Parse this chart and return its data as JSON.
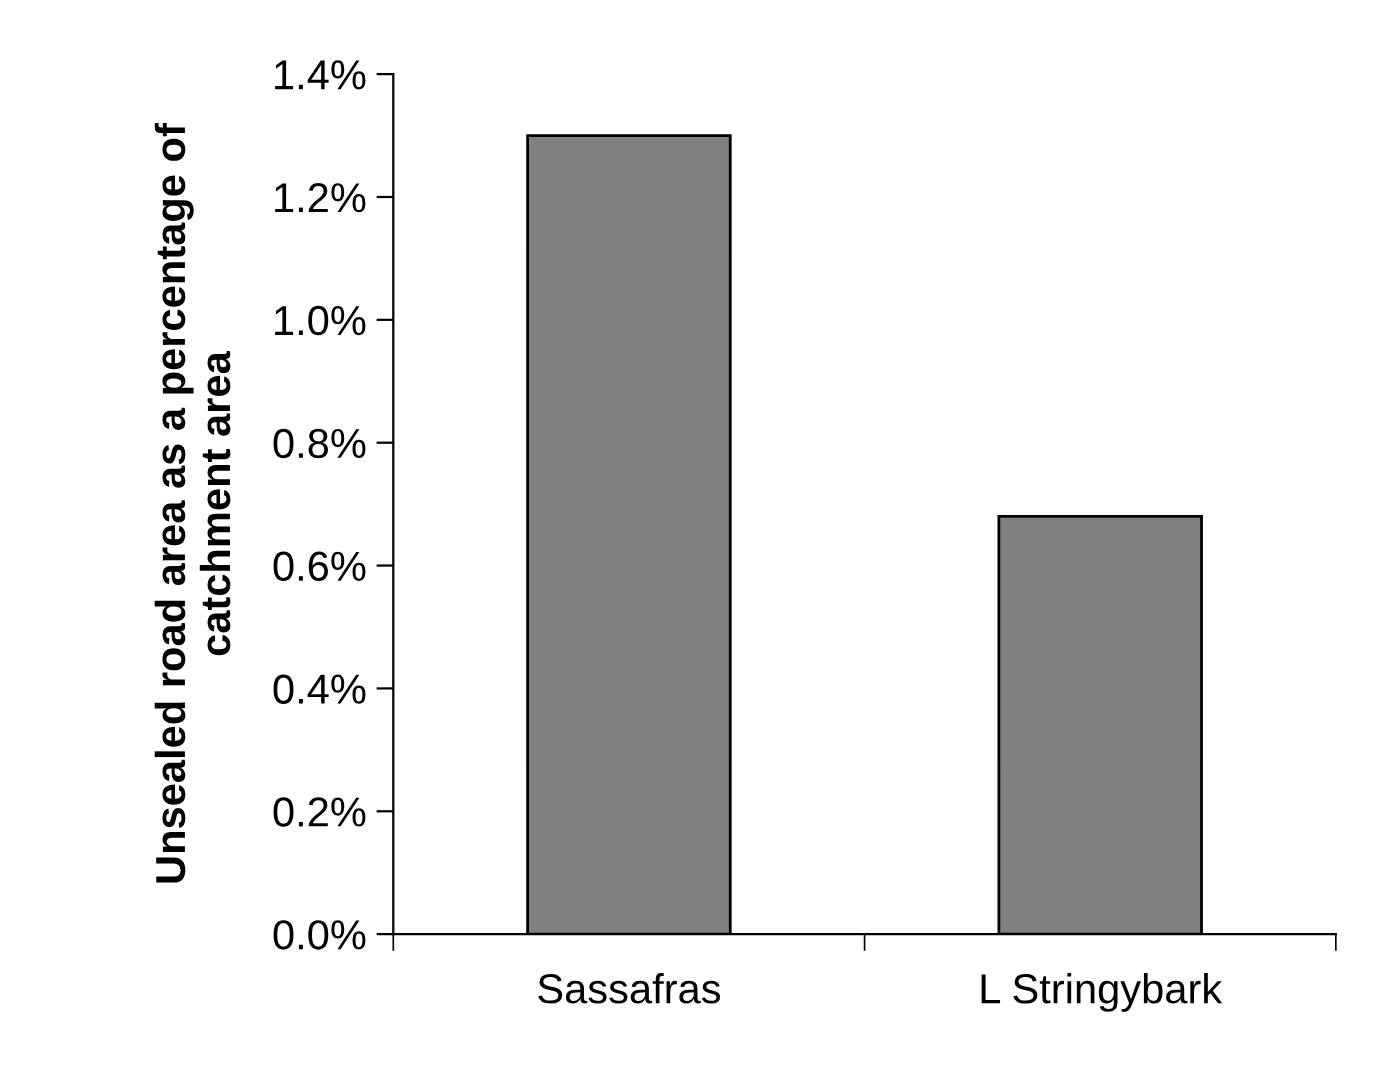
{
  "chart_data": {
    "type": "bar",
    "ylabel": "Unsealed road area as a percentage of\ncatchment area",
    "categories": [
      "Sassafras",
      "L Stringybark"
    ],
    "values": [
      1.3,
      0.68
    ],
    "color": "#808080",
    "ylim": [
      0,
      1.4
    ],
    "yticks": [
      {
        "value": 0,
        "label": "0.0%"
      },
      {
        "value": 0.2,
        "label": "0.2%"
      },
      {
        "value": 0.4,
        "label": "0.4%"
      },
      {
        "value": 0.6,
        "label": "0.6%"
      },
      {
        "value": 0.8,
        "label": "0.8%"
      },
      {
        "value": 1.0,
        "label": "1.0%"
      },
      {
        "value": 1.2,
        "label": "1.2%"
      },
      {
        "value": 1.4,
        "label": "1.4%"
      }
    ],
    "grid": false,
    "legend": false
  }
}
